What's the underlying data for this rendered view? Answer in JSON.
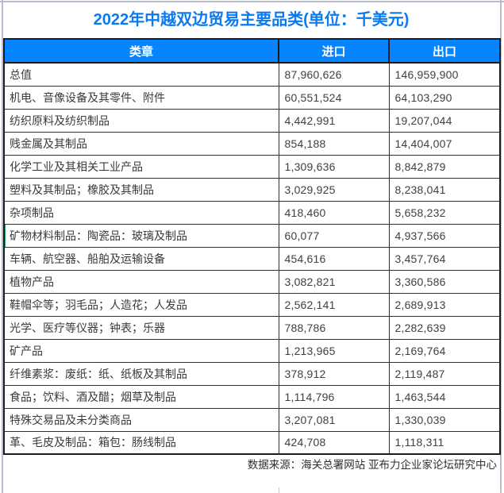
{
  "chart_data": {
    "type": "table",
    "title": "2022年中越双边贸易主要品类(单位：千美元)",
    "columns": [
      "类章",
      "进口",
      "出口"
    ],
    "rows": [
      {
        "category": "总值",
        "import": 87960626,
        "export": 146959900
      },
      {
        "category": "机电、音像设备及其零件、附件",
        "import": 60551524,
        "export": 64103290
      },
      {
        "category": "纺织原料及纺织制品",
        "import": 4442991,
        "export": 19207044
      },
      {
        "category": "贱金属及其制品",
        "import": 854188,
        "export": 14404007
      },
      {
        "category": "化学工业及其相关工业产品",
        "import": 1309636,
        "export": 8842879
      },
      {
        "category": "塑料及其制品；橡胶及其制品",
        "import": 3029925,
        "export": 8238041
      },
      {
        "category": "杂项制品",
        "import": 418460,
        "export": 5658232
      },
      {
        "category": "矿物材料制品：陶瓷品：玻璃及制品",
        "import": 60077,
        "export": 4937566
      },
      {
        "category": "车辆、航空器、船舶及运输设备",
        "import": 454616,
        "export": 3457764
      },
      {
        "category": "植物产品",
        "import": 3082821,
        "export": 3360586
      },
      {
        "category": "鞋帽伞等；羽毛品；人造花；人发品",
        "import": 2562141,
        "export": 2689913
      },
      {
        "category": "光学、医疗等仪器；钟表；乐器",
        "import": 788786,
        "export": 2282639
      },
      {
        "category": "矿产品",
        "import": 1213965,
        "export": 2169764
      },
      {
        "category": "纤维素浆：废纸：纸、纸板及其制品",
        "import": 378912,
        "export": 2119487
      },
      {
        "category": "食品；饮料、酒及醋；烟草及制品",
        "import": 1114796,
        "export": 1463544
      },
      {
        "category": "特殊交易品及未分类商品",
        "import": 3207081,
        "export": 1330039
      },
      {
        "category": "革、毛皮及制品：箱包：肠线制品",
        "import": 424708,
        "export": 1118311
      }
    ],
    "source_note": "数据来源：海关总署网站 亚布力企业家论坛研究中心"
  },
  "spreadsheet": {
    "active_cell_row_index": 7,
    "active_cell_row_label": "矿物材料制品：陶瓷品：玻璃及制品"
  },
  "colors": {
    "title_blue": "#0a7af0",
    "header_fill_blue": "#0685ff",
    "header_text": "#ffffff",
    "grid_border": "#1c1c1c",
    "body_text": "#3a3a3a",
    "sheet_gridline": "#b7bdcc",
    "marker_green": "#21a366"
  }
}
